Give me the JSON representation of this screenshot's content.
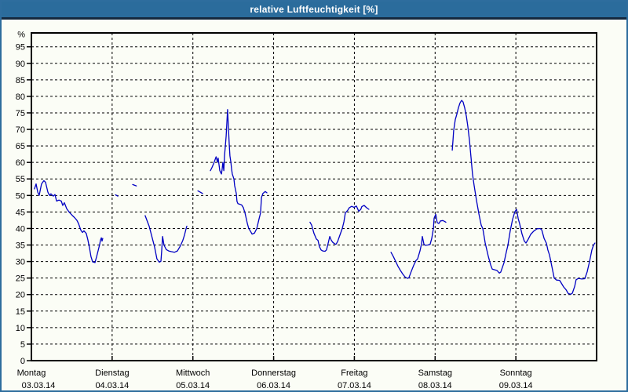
{
  "window": {
    "title": "relative Luftfeuchtigkeit [%]"
  },
  "colors": {
    "titlebar_bg": "#2b6c9c",
    "titlebar_text": "#ffffff",
    "window_border": "#2e6d9e",
    "titlebar_separator": "#15293f",
    "content_bg": "#fbfdf6",
    "plot_frame": "#000000",
    "gridline": "#000000",
    "series_line": "#0000c3",
    "tick_label": "#000000"
  },
  "chart_data": {
    "type": "line",
    "title": "relative Luftfeuchtigkeit [%]",
    "ylabel": "%",
    "ylim": [
      0,
      100
    ],
    "yticks": [
      0,
      5,
      10,
      15,
      20,
      25,
      30,
      35,
      40,
      45,
      50,
      55,
      60,
      65,
      70,
      75,
      80,
      85,
      90,
      95
    ],
    "grid": "dashed, horizontal at every 5% and vertical at every day boundary",
    "legend_position": "none",
    "x_unit": "hours since Monday 03.03.14 00:00",
    "xlim": [
      0,
      168
    ],
    "days": [
      {
        "name": "Montag",
        "date": "03.03.14"
      },
      {
        "name": "Dienstag",
        "date": "04.03.14"
      },
      {
        "name": "Mittwoch",
        "date": "05.03.14"
      },
      {
        "name": "Donnerstag",
        "date": "06.03.14"
      },
      {
        "name": "Freitag",
        "date": "07.03.14"
      },
      {
        "name": "Samstag",
        "date": "08.03.14"
      },
      {
        "name": "Sonntag",
        "date": "09.03.14"
      }
    ],
    "series": [
      {
        "name": "relative Luftfeuchtigkeit [%]",
        "color": "#0000c3",
        "note": "recorded with data gaps; each segment is a contiguous run of measurements [hour, percent]",
        "segments": [
          [
            [
              0.9,
              52
            ],
            [
              1.4,
              53.5
            ],
            [
              1.9,
              51
            ],
            [
              2.3,
              50
            ],
            [
              3.0,
              53.5
            ],
            [
              3.7,
              54.5
            ],
            [
              4.2,
              54
            ],
            [
              4.9,
              51
            ],
            [
              5.4,
              50
            ],
            [
              5.8,
              50.5
            ],
            [
              6.5,
              49.8
            ],
            [
              7.0,
              50.3
            ],
            [
              7.5,
              48.3
            ],
            [
              8.2,
              48.6
            ],
            [
              8.9,
              48.3
            ],
            [
              9.3,
              47
            ],
            [
              9.8,
              47.8
            ],
            [
              10.5,
              46
            ],
            [
              11.2,
              45
            ],
            [
              12.1,
              44
            ],
            [
              12.8,
              43.3
            ],
            [
              13.5,
              42.5
            ],
            [
              14.0,
              41.5
            ],
            [
              14.7,
              39.5
            ],
            [
              15.2,
              38.8
            ],
            [
              15.6,
              39.3
            ],
            [
              16.3,
              38.5
            ],
            [
              16.8,
              36.5
            ],
            [
              17.3,
              34
            ],
            [
              17.7,
              31.5
            ],
            [
              18.2,
              29.9
            ],
            [
              18.9,
              29.7
            ],
            [
              19.4,
              31.5
            ],
            [
              19.8,
              33.2
            ],
            [
              20.3,
              35.2
            ],
            [
              20.5,
              36.4
            ],
            [
              20.8,
              37.2
            ],
            [
              21.0,
              36.2
            ],
            [
              21.2,
              37
            ]
          ],
          [
            [
              25.0,
              50.2
            ],
            [
              25.7,
              49.8
            ]
          ],
          [
            [
              30.1,
              53.3
            ],
            [
              31.2,
              52.9
            ]
          ],
          [
            [
              33.8,
              43.9
            ],
            [
              34.5,
              42
            ],
            [
              35.0,
              40.7
            ],
            [
              35.7,
              38
            ],
            [
              36.6,
              34.4
            ],
            [
              37.3,
              30.8
            ],
            [
              38.0,
              29.8
            ],
            [
              38.5,
              30.1
            ],
            [
              38.7,
              33
            ],
            [
              39.0,
              37.6
            ],
            [
              39.4,
              35
            ],
            [
              39.7,
              34.4
            ],
            [
              40.1,
              33.6
            ],
            [
              40.8,
              33.2
            ],
            [
              41.5,
              33
            ],
            [
              42.5,
              32.8
            ],
            [
              43.4,
              33.2
            ],
            [
              44.3,
              34.8
            ],
            [
              45.0,
              36.4
            ],
            [
              45.5,
              38
            ],
            [
              46.0,
              40
            ],
            [
              46.2,
              40.7
            ]
          ],
          [
            [
              49.5,
              51.4
            ],
            [
              50.9,
              50.6
            ]
          ],
          [
            [
              53.2,
              57.5
            ],
            [
              53.7,
              58.5
            ],
            [
              54.1,
              59.5
            ],
            [
              54.9,
              61.7
            ],
            [
              55.3,
              60.1
            ],
            [
              55.5,
              61.3
            ],
            [
              56.0,
              57.5
            ],
            [
              56.5,
              56.5
            ],
            [
              56.7,
              58
            ],
            [
              56.9,
              60
            ],
            [
              57.2,
              57.5
            ],
            [
              57.4,
              62
            ],
            [
              57.6,
              64.5
            ],
            [
              57.9,
              68
            ],
            [
              58.1,
              72
            ],
            [
              58.3,
              76
            ],
            [
              58.6,
              70
            ],
            [
              58.8,
              65.6
            ],
            [
              59.0,
              62
            ],
            [
              59.3,
              60.1
            ],
            [
              59.5,
              58
            ],
            [
              59.7,
              56.5
            ],
            [
              60.2,
              55
            ],
            [
              60.4,
              53
            ],
            [
              60.9,
              50.6
            ],
            [
              61.1,
              48.2
            ],
            [
              61.4,
              47.5
            ],
            [
              62.1,
              47.3
            ],
            [
              62.5,
              47.1
            ],
            [
              63.0,
              46.3
            ],
            [
              63.5,
              44.7
            ],
            [
              64.2,
              41.5
            ],
            [
              64.6,
              40
            ],
            [
              65.1,
              39.2
            ],
            [
              65.6,
              38.3
            ],
            [
              66.3,
              38.6
            ],
            [
              67.0,
              40
            ],
            [
              67.7,
              43
            ],
            [
              68.1,
              44.7
            ],
            [
              68.4,
              49.4
            ],
            [
              68.8,
              50.6
            ],
            [
              69.5,
              51.2
            ],
            [
              70.0,
              50.8
            ]
          ],
          [
            [
              82.8,
              41.9
            ],
            [
              83.3,
              41
            ],
            [
              84.0,
              38.5
            ],
            [
              84.7,
              36.8
            ],
            [
              85.2,
              36.4
            ],
            [
              85.6,
              34.5
            ],
            [
              86.1,
              33.5
            ],
            [
              86.6,
              33.2
            ],
            [
              87.3,
              33.1
            ],
            [
              87.7,
              33.5
            ],
            [
              88.2,
              35.5
            ],
            [
              88.7,
              37.6
            ],
            [
              89.1,
              36.5
            ],
            [
              89.6,
              35.8
            ],
            [
              90.1,
              35.4
            ],
            [
              90.5,
              35.2
            ],
            [
              91.0,
              36
            ],
            [
              91.7,
              38
            ],
            [
              92.4,
              40
            ],
            [
              92.9,
              42
            ],
            [
              93.3,
              44.7
            ],
            [
              94.0,
              45.5
            ],
            [
              94.5,
              46.3
            ],
            [
              95.2,
              46.7
            ],
            [
              95.9,
              46.4
            ],
            [
              96.6,
              46.8
            ],
            [
              97.3,
              45.2
            ],
            [
              97.9,
              45.8
            ],
            [
              98.2,
              46.6
            ],
            [
              98.9,
              47
            ],
            [
              99.6,
              46.3
            ],
            [
              100.3,
              45.8
            ]
          ],
          [
            [
              106.9,
              32.8
            ],
            [
              107.6,
              31.5
            ],
            [
              108.3,
              30
            ],
            [
              109.0,
              28.5
            ],
            [
              109.7,
              27.3
            ],
            [
              110.4,
              26.2
            ],
            [
              111.1,
              25.3
            ],
            [
              111.8,
              24.9
            ],
            [
              112.2,
              25.1
            ],
            [
              112.9,
              27
            ],
            [
              113.6,
              28.8
            ],
            [
              114.3,
              30.3
            ],
            [
              114.8,
              30.8
            ],
            [
              115.3,
              32.5
            ],
            [
              115.5,
              33.2
            ],
            [
              116.0,
              35.5
            ],
            [
              116.2,
              37.6
            ],
            [
              116.7,
              35.2
            ],
            [
              117.1,
              34.9
            ],
            [
              117.8,
              35
            ],
            [
              118.5,
              35.2
            ],
            [
              119.0,
              37
            ],
            [
              119.5,
              40
            ],
            [
              119.7,
              43.1
            ],
            [
              120.2,
              44.3
            ],
            [
              120.6,
              41.8
            ],
            [
              121.1,
              41.5
            ],
            [
              121.6,
              42.3
            ],
            [
              122.3,
              42.4
            ],
            [
              122.7,
              42.2
            ],
            [
              123.2,
              41.9
            ]
          ],
          [
            [
              125.1,
              63.7
            ],
            [
              125.3,
              66.5
            ],
            [
              125.5,
              69.6
            ],
            [
              126.0,
              73
            ],
            [
              126.5,
              74.7
            ],
            [
              126.9,
              76.5
            ],
            [
              127.4,
              78
            ],
            [
              127.9,
              78.8
            ],
            [
              128.3,
              78.3
            ],
            [
              128.8,
              76.5
            ],
            [
              129.3,
              74
            ],
            [
              129.7,
              71
            ],
            [
              130.2,
              66.8
            ],
            [
              130.7,
              61.3
            ],
            [
              131.1,
              56.5
            ],
            [
              131.6,
              53
            ],
            [
              132.3,
              48.5
            ],
            [
              133.0,
              44.5
            ],
            [
              133.7,
              41
            ],
            [
              134.2,
              39.9
            ],
            [
              134.9,
              35.6
            ],
            [
              135.8,
              31.6
            ],
            [
              136.5,
              29
            ],
            [
              137.0,
              27.7
            ],
            [
              137.7,
              27.5
            ],
            [
              138.4,
              27.3
            ],
            [
              139.1,
              26.5
            ],
            [
              139.5,
              26.8
            ],
            [
              140.5,
              29.7
            ],
            [
              141.2,
              33
            ],
            [
              141.6,
              34.8
            ],
            [
              142.3,
              39.2
            ],
            [
              143.0,
              42.7
            ],
            [
              143.7,
              45.1
            ],
            [
              144.2,
              45.8
            ],
            [
              144.7,
              43
            ],
            [
              145.1,
              41.5
            ],
            [
              145.8,
              38.4
            ],
            [
              146.5,
              36.2
            ],
            [
              147.0,
              35.6
            ],
            [
              147.7,
              36.8
            ],
            [
              148.4,
              38.2
            ],
            [
              149.3,
              39.2
            ],
            [
              150.3,
              39.9
            ],
            [
              151.2,
              40
            ],
            [
              151.7,
              39.6
            ],
            [
              152.4,
              37
            ],
            [
              153.1,
              35.5
            ],
            [
              153.5,
              33.5
            ],
            [
              154.0,
              32
            ],
            [
              154.7,
              28.5
            ],
            [
              155.4,
              25
            ],
            [
              156.1,
              24.4
            ],
            [
              157.0,
              24.3
            ],
            [
              157.5,
              23.5
            ],
            [
              158.2,
              22.3
            ],
            [
              158.9,
              21.5
            ],
            [
              159.6,
              20.3
            ],
            [
              160.3,
              20.1
            ],
            [
              160.8,
              20.4
            ],
            [
              161.5,
              22.5
            ],
            [
              161.9,
              24.5
            ],
            [
              162.6,
              24.9
            ],
            [
              163.6,
              24.7
            ],
            [
              164.5,
              24.8
            ],
            [
              165.2,
              26.9
            ],
            [
              165.9,
              30
            ],
            [
              166.6,
              33.5
            ],
            [
              167.1,
              35
            ],
            [
              167.5,
              35.6
            ]
          ]
        ]
      }
    ]
  }
}
